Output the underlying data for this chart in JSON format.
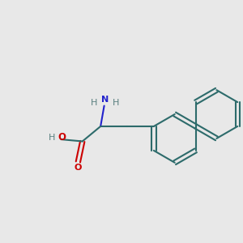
{
  "background_color": "#e8e8e8",
  "bond_color": "#2d6b6b",
  "bond_lw": 1.5,
  "N_color": "#2222cc",
  "O_color": "#cc0000",
  "H_color": "#5a8080",
  "figsize": [
    3.0,
    3.0
  ],
  "dpi": 100,
  "xlim": [
    0,
    10
  ],
  "ylim": [
    0,
    10
  ]
}
